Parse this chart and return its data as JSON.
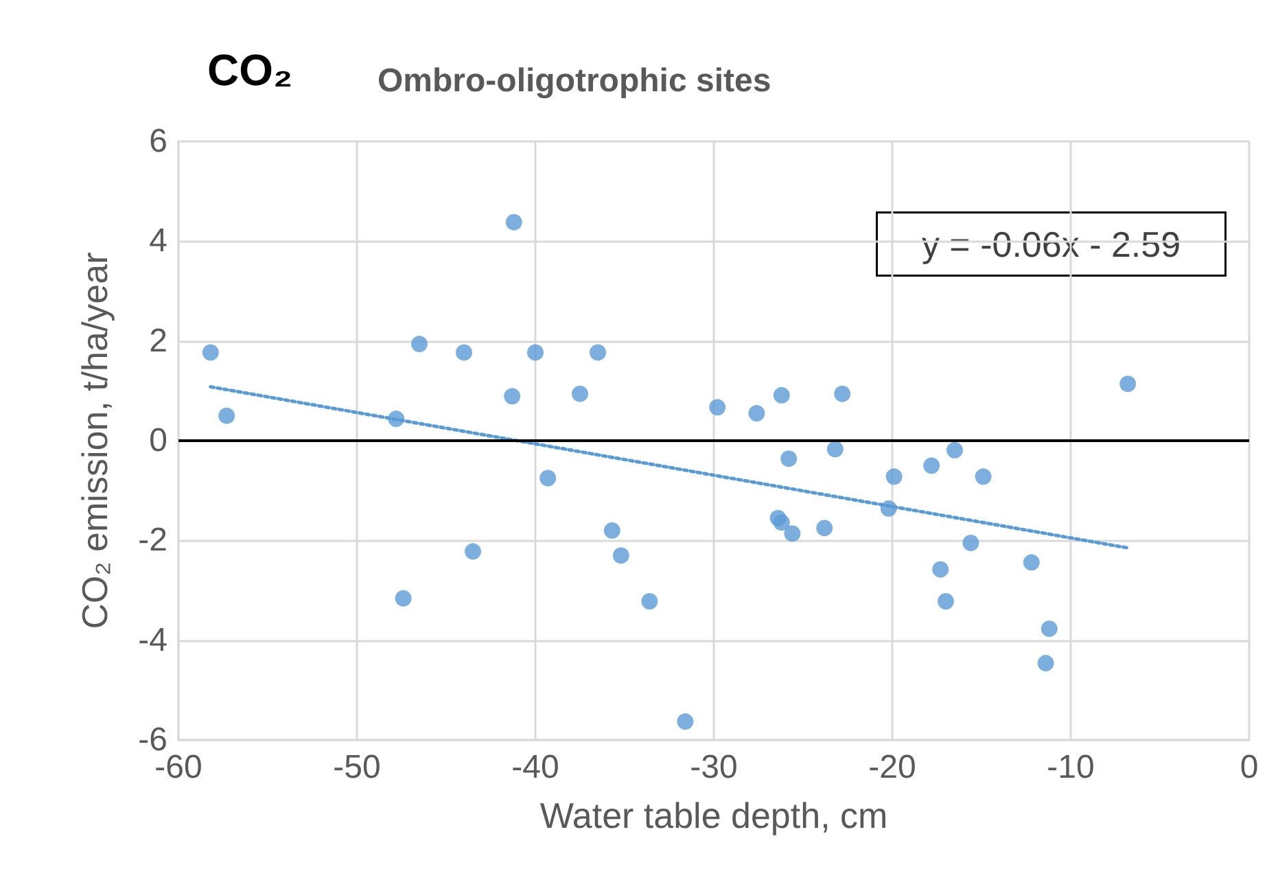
{
  "chart_data": {
    "type": "scatter",
    "title": "CO₂",
    "subtitle": "Ombro-oligotrophic sites",
    "xlabel": "Water table depth, cm",
    "ylabel": "CO₂ emission, t/ha/year",
    "annotations": [
      "y = -0.06x - 2.59"
    ],
    "series": [
      {
        "color": "#5b9bd5",
        "marker": "circle",
        "x": [
          -58.2,
          -57.3,
          -46.5,
          -47.8,
          -47.4,
          -44.0,
          -43.5,
          -41.2,
          -41.3,
          -40.0,
          -39.3,
          -37.5,
          -36.5,
          -35.7,
          -35.2,
          -33.6,
          -31.6,
          -29.8,
          -27.6,
          -26.2,
          -25.8,
          -26.4,
          -26.2,
          -25.6,
          -23.8,
          -22.8,
          -23.2,
          -19.9,
          -20.2,
          -17.8,
          -16.5,
          -17.3,
          -17.0,
          -15.6,
          -14.9,
          -12.2,
          -11.2,
          -11.4,
          -6.8
        ],
        "values": [
          1.77,
          0.5,
          1.94,
          0.44,
          -3.16,
          1.77,
          -2.22,
          4.38,
          0.89,
          1.77,
          -0.75,
          0.94,
          1.77,
          -1.8,
          -2.3,
          -3.22,
          -5.63,
          0.67,
          0.55,
          0.91,
          -0.36,
          -1.55,
          -1.64,
          -1.86,
          -1.75,
          0.94,
          -0.17,
          -0.72,
          -1.36,
          -0.5,
          -0.19,
          -2.58,
          -3.22,
          -2.05,
          -0.72,
          -2.44,
          -3.77,
          -4.46,
          1.14
        ]
      },
      {
        "type": "line",
        "color": "#5b9bd5",
        "marker": "none",
        "line_style": "dotted",
        "x": [
          -58.2,
          -6.8
        ],
        "values": [
          1.08,
          -2.15
        ]
      }
    ],
    "xlim": [
      -60,
      0
    ],
    "xticks": [
      -60,
      -50,
      -40,
      -30,
      -20,
      -10,
      0
    ],
    "ylim": [
      -6,
      6
    ],
    "yticks": [
      -6,
      -4,
      -2,
      0,
      2,
      4,
      6
    ],
    "ref_lines": [
      {
        "axis": "y",
        "value": 0,
        "color": "#000000",
        "line_style": "solid"
      }
    ],
    "grid": true
  }
}
